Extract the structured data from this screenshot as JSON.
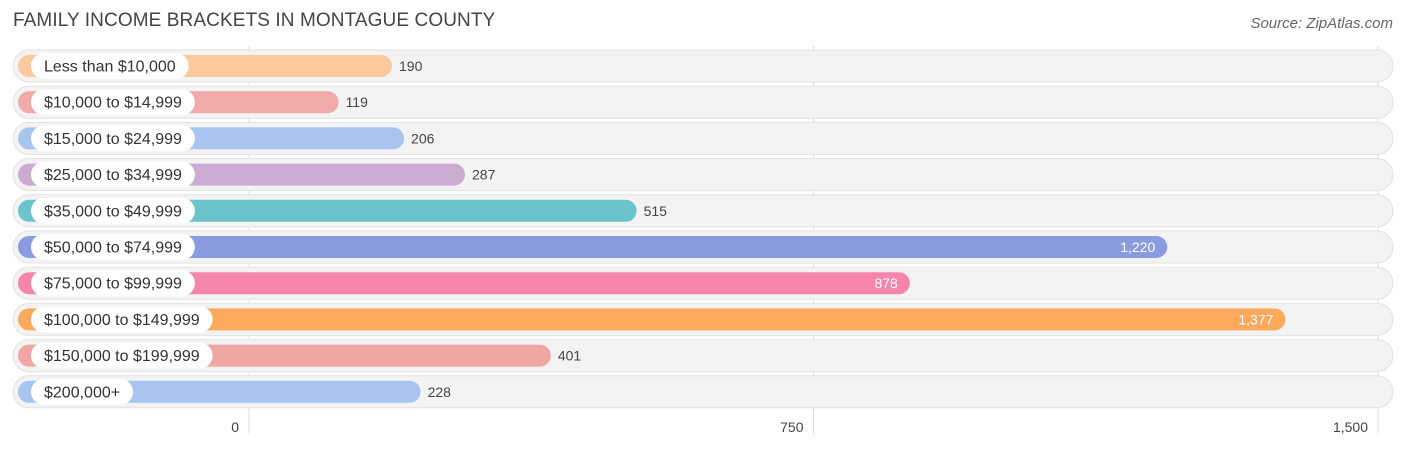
{
  "chart_data": {
    "type": "bar",
    "orientation": "horizontal",
    "title": "FAMILY INCOME BRACKETS IN MONTAGUE COUNTY",
    "source": "Source: ZipAtlas.com",
    "categories": [
      "Less than $10,000",
      "$10,000 to $14,999",
      "$15,000 to $24,999",
      "$25,000 to $34,999",
      "$35,000 to $49,999",
      "$50,000 to $74,999",
      "$75,000 to $99,999",
      "$100,000 to $149,999",
      "$150,000 to $199,999",
      "$200,000+"
    ],
    "values": [
      190,
      119,
      206,
      287,
      515,
      1220,
      878,
      1377,
      401,
      228
    ],
    "value_labels": [
      "190",
      "119",
      "206",
      "287",
      "515",
      "1,220",
      "878",
      "1,377",
      "401",
      "228"
    ],
    "colors": [
      "#fbc99c",
      "#f0aaa9",
      "#a7c5ee",
      "#cbabd2",
      "#6cc3cb",
      "#8b9be0",
      "#f685aa",
      "#fca95c",
      "#f0a6a3",
      "#a7c5ee"
    ],
    "xlim": [
      0,
      1500
    ],
    "ticks": [
      0,
      750,
      1500
    ],
    "tick_labels": [
      "0",
      "750",
      "1,500"
    ],
    "grid": true
  }
}
